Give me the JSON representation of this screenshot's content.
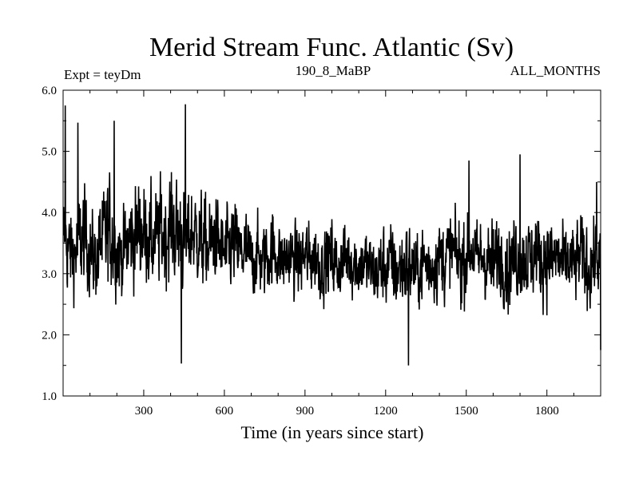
{
  "chart_data": {
    "type": "line",
    "title": "Merid Stream Func. Atlantic (Sv)",
    "subtitle_left": "Expt = teyDm",
    "subtitle_center": "190_8_MaBP",
    "subtitle_right": "ALL_MONTHS",
    "xlabel": "Time (in years since start)",
    "ylabel": "",
    "xlim": [
      0,
      2000
    ],
    "ylim": [
      1.0,
      6.0
    ],
    "x_ticks": [
      300,
      600,
      900,
      1200,
      1500,
      1800
    ],
    "x_tick_labels": [
      "300",
      "600",
      "900",
      "1200",
      "1500",
      "1800"
    ],
    "y_ticks": [
      1.0,
      2.0,
      3.0,
      4.0,
      5.0,
      6.0
    ],
    "y_tick_labels": [
      "1.0",
      "2.0",
      "3.0",
      "4.0",
      "5.0",
      "6.0"
    ],
    "series": [
      {
        "color": "#000000",
        "sampling": "annual values, year 0 to 2000 (values read at ~20-year sample points; fine-scale variability described by amplitude)",
        "x": [
          0,
          20,
          40,
          60,
          80,
          100,
          120,
          140,
          160,
          180,
          200,
          220,
          240,
          260,
          280,
          300,
          320,
          340,
          360,
          380,
          400,
          420,
          440,
          460,
          480,
          500,
          520,
          540,
          560,
          580,
          600,
          620,
          640,
          660,
          680,
          700,
          720,
          740,
          760,
          780,
          800,
          820,
          840,
          860,
          880,
          900,
          920,
          940,
          960,
          980,
          1000,
          1020,
          1040,
          1060,
          1080,
          1100,
          1120,
          1140,
          1160,
          1180,
          1200,
          1220,
          1240,
          1260,
          1280,
          1300,
          1320,
          1340,
          1360,
          1380,
          1400,
          1420,
          1440,
          1460,
          1480,
          1500,
          1520,
          1540,
          1560,
          1580,
          1600,
          1620,
          1640,
          1660,
          1680,
          1700,
          1720,
          1740,
          1760,
          1780,
          1800,
          1820,
          1840,
          1860,
          1880,
          1900,
          1920,
          1940,
          1960,
          1980,
          2000
        ],
        "values": [
          3.6,
          3.4,
          3.3,
          3.5,
          3.6,
          3.4,
          3.2,
          3.5,
          3.6,
          3.7,
          3.4,
          3.3,
          3.5,
          3.6,
          3.7,
          3.7,
          3.6,
          3.5,
          3.7,
          3.6,
          3.8,
          3.7,
          3.6,
          3.5,
          3.7,
          3.6,
          3.5,
          3.4,
          3.6,
          3.5,
          3.3,
          3.4,
          3.5,
          3.3,
          3.4,
          3.2,
          3.3,
          3.2,
          3.3,
          3.4,
          3.3,
          3.2,
          3.3,
          3.2,
          3.2,
          3.3,
          3.2,
          3.3,
          3.1,
          3.2,
          3.3,
          3.1,
          3.2,
          3.3,
          3.2,
          3.1,
          3.2,
          3.1,
          3.0,
          3.1,
          3.1,
          3.2,
          3.0,
          3.1,
          3.2,
          3.1,
          3.0,
          3.2,
          3.1,
          3.2,
          3.3,
          3.2,
          3.4,
          3.3,
          3.2,
          3.3,
          3.4,
          3.2,
          3.3,
          3.2,
          3.1,
          3.3,
          3.2,
          3.1,
          3.3,
          3.2,
          3.3,
          3.2,
          3.4,
          3.2,
          3.3,
          3.2,
          3.3,
          3.1,
          3.2,
          3.1,
          3.3,
          3.2,
          3.1,
          3.3,
          3.2
        ],
        "amplitude": [
          1.0,
          0.9,
          0.8,
          1.1,
          1.0,
          0.9,
          0.8,
          1.0,
          1.1,
          1.2,
          0.9,
          0.8,
          1.0,
          1.0,
          1.1,
          1.0,
          1.0,
          0.9,
          1.1,
          1.0,
          1.1,
          1.0,
          1.2,
          0.9,
          1.0,
          0.9,
          1.0,
          0.9,
          0.9,
          0.8,
          0.9,
          0.8,
          0.9,
          0.8,
          0.8,
          0.7,
          0.8,
          0.7,
          0.8,
          0.8,
          0.7,
          0.7,
          0.7,
          0.7,
          0.7,
          0.8,
          0.7,
          0.7,
          0.7,
          0.7,
          0.8,
          0.7,
          0.7,
          0.8,
          0.7,
          0.7,
          0.7,
          0.7,
          0.7,
          0.8,
          0.8,
          0.8,
          0.8,
          0.8,
          0.9,
          0.8,
          0.7,
          0.8,
          0.8,
          0.8,
          0.8,
          0.8,
          0.8,
          0.8,
          0.9,
          0.8,
          0.8,
          0.8,
          0.8,
          0.8,
          0.9,
          0.8,
          0.8,
          0.9,
          0.8,
          0.8,
          0.9,
          0.8,
          0.9,
          0.8,
          0.9,
          0.8,
          0.8,
          0.8,
          0.8,
          0.8,
          0.8,
          0.9,
          0.8,
          0.8,
          0.8
        ],
        "peaks": [
          {
            "x": 8,
            "y": 5.75
          },
          {
            "x": 55,
            "y": 5.47
          },
          {
            "x": 190,
            "y": 5.5
          },
          {
            "x": 455,
            "y": 5.77
          },
          {
            "x": 1285,
            "y": 1.5
          },
          {
            "x": 440,
            "y": 1.53
          },
          {
            "x": 1510,
            "y": 4.85
          },
          {
            "x": 1700,
            "y": 4.95
          },
          {
            "x": 1985,
            "y": 4.5
          },
          {
            "x": 2000,
            "y": 1.75
          }
        ]
      }
    ]
  }
}
